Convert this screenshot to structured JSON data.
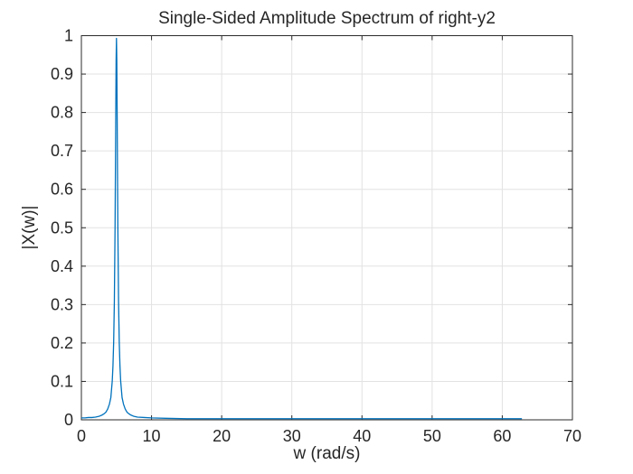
{
  "figure": {
    "background": "#ffffff"
  },
  "chart_data": {
    "type": "line",
    "title": "Single-Sided Amplitude Spectrum of right-y2",
    "xlabel": "w (rad/s)",
    "ylabel": "|X(w)|",
    "xlim": [
      0,
      70
    ],
    "ylim": [
      0,
      1
    ],
    "xticks": [
      0,
      10,
      20,
      30,
      40,
      50,
      60,
      70
    ],
    "xtick_labels": [
      "0",
      "10",
      "20",
      "30",
      "40",
      "50",
      "60",
      "70"
    ],
    "yticks": [
      0,
      0.1,
      0.2,
      0.3,
      0.4,
      0.5,
      0.6,
      0.7,
      0.8,
      0.9,
      1
    ],
    "ytick_labels": [
      "0",
      "0.1",
      "0.2",
      "0.3",
      "0.4",
      "0.5",
      "0.6",
      "0.7",
      "0.8",
      "0.9",
      "1"
    ],
    "grid": true,
    "legend": "none",
    "line_color": "#0072BD",
    "grid_color": "#e2e2e2",
    "axis_color": "#2b2b2b",
    "tick_label_color": "#262626",
    "peak": {
      "x": 5,
      "y": 0.99
    },
    "series": [
      {
        "name": "right-y2 amplitude spectrum",
        "points": [
          [
            0,
            0.005
          ],
          [
            0.5,
            0.005
          ],
          [
            1,
            0.006
          ],
          [
            1.5,
            0.006
          ],
          [
            2,
            0.007
          ],
          [
            2.5,
            0.009
          ],
          [
            3,
            0.013
          ],
          [
            3.25,
            0.016
          ],
          [
            3.5,
            0.02
          ],
          [
            3.75,
            0.028
          ],
          [
            4,
            0.041
          ],
          [
            4.2,
            0.058
          ],
          [
            4.4,
            0.101
          ],
          [
            4.5,
            0.14
          ],
          [
            4.6,
            0.201
          ],
          [
            4.7,
            0.308
          ],
          [
            4.8,
            0.498
          ],
          [
            4.85,
            0.637
          ],
          [
            4.9,
            0.795
          ],
          [
            4.95,
            0.935
          ],
          [
            5,
            0.993
          ],
          [
            5.05,
            0.935
          ],
          [
            5.1,
            0.795
          ],
          [
            5.15,
            0.637
          ],
          [
            5.2,
            0.498
          ],
          [
            5.3,
            0.308
          ],
          [
            5.4,
            0.201
          ],
          [
            5.5,
            0.14
          ],
          [
            5.6,
            0.101
          ],
          [
            5.8,
            0.058
          ],
          [
            6,
            0.041
          ],
          [
            6.25,
            0.028
          ],
          [
            6.5,
            0.02
          ],
          [
            6.75,
            0.016
          ],
          [
            7,
            0.013
          ],
          [
            7.5,
            0.009
          ],
          [
            8,
            0.007
          ],
          [
            9,
            0.006
          ],
          [
            10,
            0.005
          ],
          [
            12,
            0.004
          ],
          [
            15,
            0.003
          ],
          [
            20,
            0.003
          ],
          [
            25,
            0.003
          ],
          [
            30,
            0.003
          ],
          [
            35,
            0.003
          ],
          [
            40,
            0.003
          ],
          [
            45,
            0.003
          ],
          [
            50,
            0.003
          ],
          [
            55,
            0.003
          ],
          [
            60,
            0.003
          ],
          [
            62.8,
            0.003
          ]
        ]
      }
    ]
  }
}
